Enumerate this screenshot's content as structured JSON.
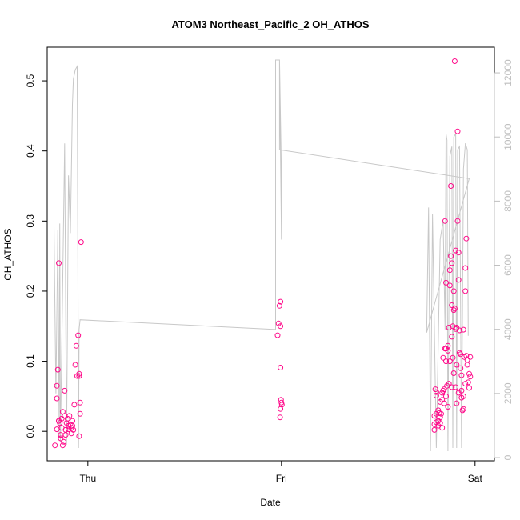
{
  "chart_data": {
    "type": "scatter",
    "title": "ATOM3 Northeast_Pacific_2 OH_ATHOS",
    "xlabel": "Date",
    "ylabel": "OH_ATHOS",
    "x_tick_labels": [
      "Thu",
      "Fri",
      "Sat"
    ],
    "x_tick_values": [
      0,
      1,
      2
    ],
    "xlim": [
      -0.21,
      2.1
    ],
    "ylim": [
      -0.042,
      0.548
    ],
    "y_ticks": [
      0.0,
      0.1,
      0.2,
      0.3,
      0.4,
      0.5
    ],
    "y_tick_labels": [
      "0.0",
      "0.1",
      "0.2",
      "0.3",
      "0.4",
      "0.5"
    ],
    "y2lim": [
      -100,
      12800
    ],
    "y2_ticks": [
      0,
      2000,
      4000,
      6000,
      8000,
      10000,
      12000
    ],
    "y2_tick_labels": [
      "0",
      "2000",
      "4000",
      "6000",
      "8000",
      "10000",
      "12000"
    ],
    "colors": {
      "points": "#ff0a8a",
      "line": "#c8c8c8",
      "right_axis": "#bfbfbf"
    },
    "grid": false,
    "series": [
      {
        "kind": "points",
        "axis": "left",
        "values": [
          [
            -0.17,
            -0.02
          ],
          [
            -0.16,
            0.003
          ],
          [
            -0.15,
            0.015
          ],
          [
            -0.15,
            0.24
          ],
          [
            -0.16,
            0.065
          ],
          [
            -0.16,
            0.047
          ],
          [
            -0.155,
            0.088
          ],
          [
            -0.15,
            0.015
          ],
          [
            -0.145,
            0.012
          ],
          [
            -0.14,
            -0.005
          ],
          [
            -0.14,
            -0.01
          ],
          [
            -0.135,
            0.005
          ],
          [
            -0.135,
            0.018
          ],
          [
            -0.13,
            0.028
          ],
          [
            -0.13,
            -0.02
          ],
          [
            -0.125,
            -0.015
          ],
          [
            -0.12,
            0.058
          ],
          [
            -0.12,
            0.022
          ],
          [
            -0.115,
            0.002
          ],
          [
            -0.115,
            -0.005
          ],
          [
            -0.11,
            0.012
          ],
          [
            -0.105,
            0.018
          ],
          [
            -0.1,
            0.003
          ],
          [
            -0.1,
            0.008
          ],
          [
            -0.095,
            0.022
          ],
          [
            -0.09,
            0.01
          ],
          [
            -0.085,
            0.005
          ],
          [
            -0.085,
            -0.003
          ],
          [
            -0.08,
            0.015
          ],
          [
            -0.08,
            0.008
          ],
          [
            -0.075,
            0.002
          ],
          [
            -0.07,
            0.038
          ],
          [
            -0.065,
            0.095
          ],
          [
            -0.06,
            0.122
          ],
          [
            -0.055,
            0.079
          ],
          [
            -0.05,
            0.137
          ],
          [
            -0.045,
            0.079
          ],
          [
            -0.045,
            0.082
          ],
          [
            -0.04,
            0.041
          ],
          [
            -0.04,
            0.025
          ],
          [
            -0.045,
            -0.007
          ],
          [
            -0.035,
            0.27
          ],
          [
            0.98,
            0.137
          ],
          [
            0.985,
            0.154
          ],
          [
            0.99,
            0.179
          ],
          [
            0.995,
            0.185
          ],
          [
            0.995,
            0.15
          ],
          [
            0.995,
            0.091
          ],
          [
            0.998,
            0.045
          ],
          [
            1.0,
            0.041
          ],
          [
            1.002,
            0.038
          ],
          [
            0.995,
            0.032
          ],
          [
            0.993,
            0.02
          ],
          [
            1.79,
            0.002
          ],
          [
            1.79,
            0.01
          ],
          [
            1.79,
            0.022
          ],
          [
            1.795,
            0.06
          ],
          [
            1.8,
            0.051
          ],
          [
            1.8,
            0.056
          ],
          [
            1.8,
            0.013
          ],
          [
            1.8,
            0.025
          ],
          [
            1.81,
            0.03
          ],
          [
            1.81,
            0.015
          ],
          [
            1.81,
            0.008
          ],
          [
            1.815,
            0.026
          ],
          [
            1.82,
            0.012
          ],
          [
            1.82,
            0.02
          ],
          [
            1.825,
            0.025
          ],
          [
            1.83,
            0.005
          ],
          [
            1.83,
            0.045
          ],
          [
            1.835,
            0.105
          ],
          [
            1.835,
            0.058
          ],
          [
            1.84,
            0.06
          ],
          [
            1.845,
            0.118
          ],
          [
            1.845,
            0.3
          ],
          [
            1.85,
            0.212
          ],
          [
            1.85,
            0.118
          ],
          [
            1.85,
            0.05
          ],
          [
            1.855,
            0.065
          ],
          [
            1.86,
            0.122
          ],
          [
            1.86,
            0.115
          ],
          [
            1.865,
            0.068
          ],
          [
            1.865,
            0.148
          ],
          [
            1.87,
            0.208
          ],
          [
            1.87,
            0.23
          ],
          [
            1.875,
            0.35
          ],
          [
            1.875,
            0.25
          ],
          [
            1.88,
            0.24
          ],
          [
            1.88,
            0.18
          ],
          [
            1.885,
            0.105
          ],
          [
            1.885,
            0.15
          ],
          [
            1.89,
            0.2
          ],
          [
            1.89,
            0.173
          ],
          [
            1.895,
            0.528
          ],
          [
            1.9,
            0.258
          ],
          [
            1.9,
            0.146
          ],
          [
            1.905,
            0.095
          ],
          [
            1.905,
            0.148
          ],
          [
            1.91,
            0.3
          ],
          [
            1.91,
            0.428
          ],
          [
            1.915,
            0.255
          ],
          [
            1.915,
            0.216
          ],
          [
            1.92,
            0.144
          ],
          [
            1.92,
            0.112
          ],
          [
            1.925,
            0.11
          ],
          [
            1.925,
            0.09
          ],
          [
            1.93,
            0.08
          ],
          [
            1.93,
            0.058
          ],
          [
            1.935,
            0.03
          ],
          [
            1.94,
            0.05
          ],
          [
            1.94,
            0.145
          ],
          [
            1.945,
            0.106
          ],
          [
            1.95,
            0.233
          ],
          [
            1.95,
            0.2
          ],
          [
            1.955,
            0.275
          ],
          [
            1.955,
            0.108
          ],
          [
            1.96,
            0.102
          ],
          [
            1.96,
            0.095
          ],
          [
            1.965,
            0.07
          ],
          [
            1.97,
            0.082
          ],
          [
            1.97,
            0.062
          ],
          [
            1.975,
            0.106
          ],
          [
            1.975,
            0.078
          ],
          [
            1.9,
            0.063
          ],
          [
            1.89,
            0.083
          ],
          [
            1.895,
            0.175
          ],
          [
            1.88,
            0.135
          ],
          [
            1.87,
            0.1
          ],
          [
            1.86,
            0.035
          ],
          [
            1.84,
            0.04
          ],
          [
            1.93,
            0.048
          ],
          [
            1.94,
            0.032
          ],
          [
            1.95,
            0.068
          ],
          [
            1.85,
            0.1
          ],
          [
            1.88,
            0.063
          ],
          [
            1.83,
            0.055
          ],
          [
            1.82,
            0.042
          ],
          [
            1.905,
            0.04
          ],
          [
            1.915,
            0.055
          ]
        ]
      },
      {
        "kind": "line",
        "axis": "right",
        "values": [
          [
            -0.175,
            7200
          ],
          [
            -0.165,
            2000
          ],
          [
            -0.155,
            7100
          ],
          [
            -0.148,
            600
          ],
          [
            -0.145,
            7300
          ],
          [
            -0.142,
            500
          ],
          [
            -0.13,
            5500
          ],
          [
            -0.12,
            9800
          ],
          [
            -0.11,
            400
          ],
          [
            -0.1,
            8800
          ],
          [
            -0.09,
            7000
          ],
          [
            -0.08,
            11000
          ],
          [
            -0.075,
            11800
          ],
          [
            -0.065,
            12100
          ],
          [
            -0.055,
            12200
          ],
          [
            -0.048,
            300
          ],
          [
            -0.045,
            4000
          ],
          [
            -0.04,
            4300
          ],
          [
            0.96,
            4000
          ],
          [
            0.97,
            4000
          ],
          [
            0.97,
            12400
          ],
          [
            0.99,
            12400
          ],
          [
            1.0,
            8800
          ],
          [
            1.0,
            6800
          ],
          [
            0.99,
            12400
          ],
          [
            0.99,
            9600
          ],
          [
            1.97,
            8700
          ],
          [
            1.75,
            3900
          ],
          [
            1.76,
            7800
          ],
          [
            1.77,
            200
          ],
          [
            1.78,
            7600
          ],
          [
            1.8,
            300
          ],
          [
            1.82,
            6800
          ],
          [
            1.835,
            7400
          ],
          [
            1.845,
            4000
          ],
          [
            1.85,
            10100
          ],
          [
            1.855,
            9900
          ],
          [
            1.86,
            200
          ],
          [
            1.87,
            9400
          ],
          [
            1.88,
            9700
          ],
          [
            1.885,
            300
          ],
          [
            1.89,
            10000
          ],
          [
            1.9,
            10100
          ],
          [
            1.905,
            300
          ],
          [
            1.91,
            9600
          ],
          [
            1.92,
            9700
          ],
          [
            1.93,
            300
          ],
          [
            1.94,
            9000
          ],
          [
            1.95,
            9800
          ],
          [
            1.955,
            9700
          ],
          [
            1.96,
            9600
          ],
          [
            1.965,
            3800
          ]
        ]
      }
    ]
  }
}
